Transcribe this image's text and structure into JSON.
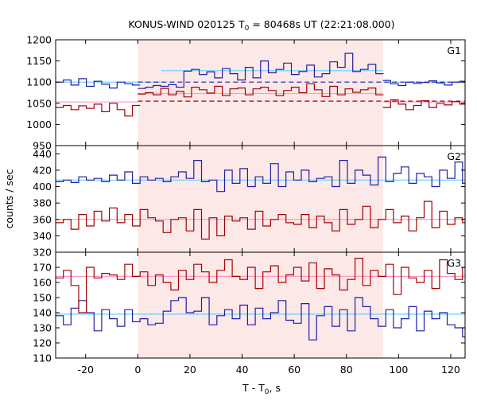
{
  "chart_data": {
    "type": "line",
    "title": {
      "main": "KONUS-WIND 020125 T",
      "sub": "0",
      "rest": " = 80468s UT (22:21:08.000)"
    },
    "xlabel": {
      "main": "T - T",
      "sub": "0",
      "rest": ", s"
    },
    "ylabel": "counts / sec",
    "xlim": [
      -31.5,
      125.5
    ],
    "x_ticks": [
      -20,
      0,
      20,
      40,
      60,
      80,
      100,
      120
    ],
    "x_tick_labels": [
      "-20",
      "0",
      "20",
      "40",
      "60",
      "80",
      "100",
      "120"
    ],
    "shaded_interval": [
      0,
      94
    ],
    "colors": {
      "blue": "#1f1fa8",
      "red": "#a50000",
      "bg_level_blue": "#66ccff",
      "bg_level_red": "#ff99cc",
      "shade": "#fde8e8"
    },
    "bin_width": 2.944,
    "panels": [
      {
        "label": "G1",
        "ylim": [
          950,
          1200
        ],
        "y_ticks": [
          950,
          1000,
          1050,
          1100,
          1150,
          1200
        ],
        "y_tick_labels": [
          "950",
          "1000",
          "1050",
          "1100",
          "1150",
          "1200"
        ],
        "series": [
          {
            "color": "blue",
            "x_start": -31.5,
            "values": [
              1100,
              1105,
              1093,
              1108,
              1090,
              1102,
              1095,
              1086,
              1100,
              1096,
              1093,
              1098,
              1100,
              1104,
              1098,
              1102,
              1100,
              1103,
              1092,
              1097,
              1094,
              1099,
              1101,
              1096,
              1098,
              1092,
              1097,
              1100,
              1093,
              1098,
              1102,
              1097,
              1095,
              1100,
              1096,
              1094,
              1100,
              1103,
              1095,
              1098,
              1104,
              1096,
              1092,
              1100,
              1097,
              1099,
              1103,
              1098,
              1093,
              1100,
              1102
            ]
          },
          {
            "color": "red",
            "x_start": -31.5,
            "values": [
              1040,
              1045,
              1035,
              1044,
              1038,
              1048,
              1030,
              1050,
              1035,
              1020,
              1045,
              1038,
              1050,
              1056,
              1042,
              1050,
              1052,
              1048,
              1054,
              1052,
              1046,
              1058,
              1050,
              1054,
              1048,
              1045,
              1056,
              1050,
              1060,
              1052,
              1055,
              1058,
              1048,
              1054,
              1060,
              1050,
              1056,
              1052,
              1062,
              1055,
              1050,
              1048,
              1040,
              1058,
              1048,
              1035,
              1045,
              1056,
              1040,
              1050,
              1046,
              1054,
              1048
            ]
          }
        ],
        "levels": [
          {
            "color": "bg_level_blue",
            "y": 1100,
            "x": [
              -31.5,
              9
            ]
          },
          {
            "color": "bg_level_blue",
            "y": 1127,
            "x": [
              9,
              94
            ]
          },
          {
            "color": "bg_level_blue",
            "y": 1100,
            "x": [
              94,
              125.5
            ]
          },
          {
            "color": "bg_level_red",
            "y": 1053,
            "x": [
              -31.5,
              0
            ]
          },
          {
            "color": "bg_level_red",
            "y": 1073,
            "x": [
              0,
              94
            ]
          },
          {
            "color": "bg_level_red",
            "y": 1053,
            "x": [
              94,
              125.5
            ]
          }
        ],
        "dashed_levels": [
          {
            "color": "blue",
            "y": 1100,
            "x": [
              0,
              125.5
            ]
          },
          {
            "color": "red",
            "y": 1055,
            "x": [
              0,
              125.5
            ]
          }
        ],
        "burst_series": [
          {
            "color": "blue",
            "x_start": 0,
            "values": [
              1085,
              1088,
              1092,
              1090,
              1094,
              1088,
              1126,
              1130,
              1118,
              1124,
              1110,
              1132,
              1120,
              1105,
              1135,
              1110,
              1150,
              1122,
              1130,
              1145,
              1118,
              1125,
              1140,
              1112,
              1120,
              1148,
              1135,
              1168,
              1125,
              1130,
              1142,
              1120
            ]
          },
          {
            "color": "red",
            "x_start": 0,
            "values": [
              1072,
              1075,
              1070,
              1085,
              1070,
              1078,
              1065,
              1088,
              1082,
              1074,
              1090,
              1068,
              1084,
              1086,
              1070,
              1084,
              1088,
              1080,
              1068,
              1080,
              1088,
              1075,
              1096,
              1082,
              1066,
              1090,
              1070,
              1084,
              1076,
              1082,
              1086,
              1070
            ]
          }
        ]
      },
      {
        "label": "G2",
        "ylim": [
          320,
          450
        ],
        "y_ticks": [
          320,
          340,
          360,
          380,
          400,
          420,
          440
        ],
        "y_tick_labels": [
          "320",
          "340",
          "360",
          "380",
          "400",
          "420",
          "440"
        ],
        "series": [
          {
            "color": "blue",
            "x_start": -31.5,
            "values": [
              406,
              408,
              405,
              412,
              408,
              410,
              406,
              414,
              408,
              418,
              404,
              412,
              408,
              410,
              406,
              412,
              418,
              410,
              432,
              406,
              408,
              394,
              420,
              404,
              422,
              400,
              412,
              404,
              428,
              400,
              418,
              408,
              420,
              406,
              410,
              412,
              400,
              432,
              404,
              420,
              414,
              402,
              436,
              406,
              416,
              424,
              404,
              416,
              412,
              400,
              420,
              410,
              430,
              404,
              420,
              426,
              408,
              402,
              432,
              398,
              426,
              402,
              420,
              414,
              406,
              434,
              422,
              416,
              418,
              400,
              412,
              400,
              426
            ]
          },
          {
            "color": "red",
            "x_start": -31.5,
            "values": [
              356,
              360,
              348,
              366,
              352,
              370,
              358,
              374,
              356,
              366,
              352,
              372,
              362,
              358,
              344,
              360,
              362,
              346,
              372,
              336,
              362,
              340,
              364,
              358,
              362,
              348,
              370,
              352,
              360,
              366,
              356,
              354,
              366,
              350,
              364,
              356,
              346,
              372,
              354,
              360,
              376,
              350,
              360,
              372,
              356,
              364,
              346,
              362,
              382,
              350,
              370,
              354,
              362,
              356,
              362,
              370,
              350,
              362,
              354,
              370,
              360,
              360,
              350,
              370,
              346,
              362,
              368,
              354,
              372,
              362,
              350,
              366,
              360
            ]
          }
        ],
        "levels": [
          {
            "color": "bg_level_blue",
            "y": 408,
            "x": [
              -31.5,
              125.5
            ]
          },
          {
            "color": "bg_level_red",
            "y": 360,
            "x": [
              -31.5,
              125.5
            ]
          }
        ],
        "dashed_levels": [],
        "burst_series": []
      },
      {
        "label": "G3",
        "ylim": [
          110,
          180
        ],
        "y_ticks": [
          110,
          120,
          130,
          140,
          150,
          160,
          170
        ],
        "y_tick_labels": [
          "110",
          "120",
          "130",
          "140",
          "150",
          "160",
          "170"
        ],
        "series": [
          {
            "color": "blue",
            "x_start": -31.5,
            "values": [
              138,
              132,
              143,
              148,
              140,
              128,
              142,
              136,
              131,
              142,
              134,
              136,
              132,
              133,
              141,
              148,
              150,
              140,
              141,
              150,
              132,
              138,
              142,
              136,
              145,
              132,
              143,
              136,
              140,
              148,
              135,
              133,
              146,
              122,
              138,
              144,
              131,
              142,
              128,
              150,
              144,
              136,
              131,
              142,
              130,
              136,
              144,
              128,
              141,
              136,
              140,
              132,
              130,
              124,
              120,
              145,
              140,
              146,
              136,
              144,
              138,
              128,
              140,
              145,
              132,
              136,
              143,
              137,
              141,
              126,
              140,
              143,
              136
            ]
          },
          {
            "color": "red",
            "x_start": -31.5,
            "values": [
              163,
              168,
              158,
              140,
              170,
              163,
              166,
              165,
              162,
              172,
              164,
              167,
              158,
              165,
              160,
              155,
              168,
              162,
              172,
              167,
              160,
              168,
              175,
              164,
              162,
              170,
              156,
              167,
              171,
              160,
              165,
              170,
              161,
              173,
              156,
              169,
              165,
              155,
              162,
              176,
              158,
              168,
              164,
              172,
              152,
              170,
              163,
              160,
              168,
              156,
              175,
              166,
              162,
              170,
              160,
              168,
              155,
              173,
              150,
              163,
              170,
              157,
              165,
              172,
              158,
              166,
              170,
              160,
              150,
              165,
              168,
              162,
              169
            ]
          }
        ],
        "levels": [
          {
            "color": "bg_level_blue",
            "y": 139,
            "x": [
              -31.5,
              125.5
            ]
          },
          {
            "color": "bg_level_red",
            "y": 164,
            "x": [
              -31.5,
              125.5
            ]
          }
        ],
        "dashed_levels": [],
        "burst_series": []
      }
    ]
  }
}
